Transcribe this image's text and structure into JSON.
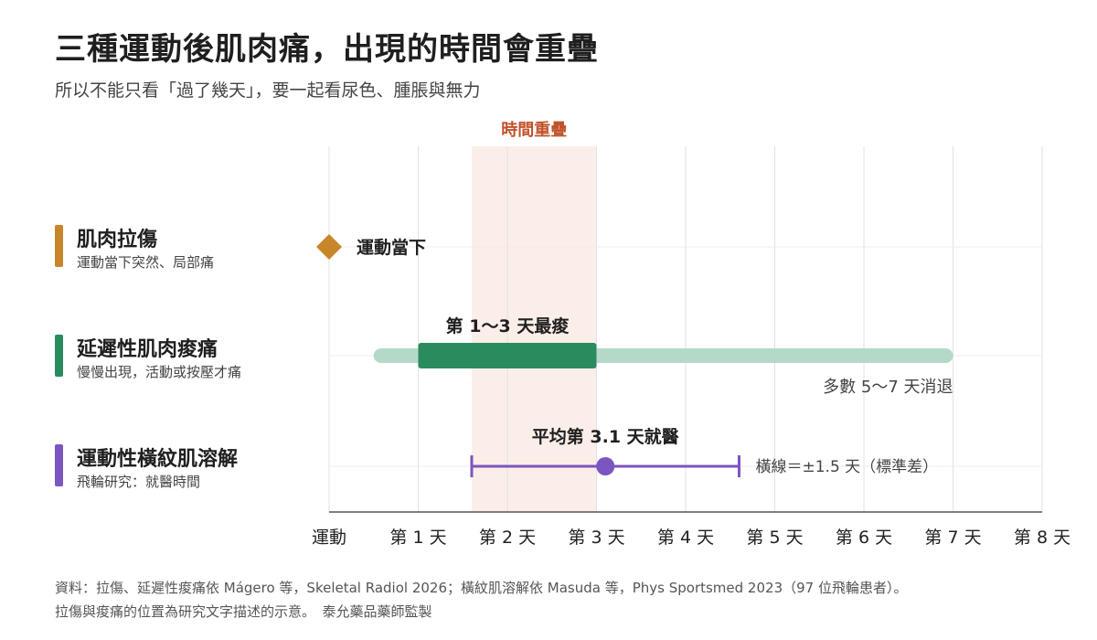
{
  "title": "三種運動後肌肉痛，出現的時間會重疊",
  "subtitle": "所以不能只看「過了幾天」，要一起看尿色、腫脹與無力",
  "rows": [
    {
      "name": "肌肉拉傷",
      "desc": "運動當下突然、局部痛",
      "color": "#c8862a"
    },
    {
      "name": "延遲性肌肉痠痛",
      "desc": "慢慢出現，活動或按壓才痛",
      "color": "#2a8c5e"
    },
    {
      "name": "運動性橫紋肌溶解",
      "desc": "飛輪研究：就醫時間",
      "color": "#7b56c0"
    }
  ],
  "footnotes": [
    "資料：拉傷、延遲性痠痛依 Mágero 等，Skeletal Radiol 2026；橫紋肌溶解依 Masuda 等，Phys Sportsmed 2023（97 位飛輪患者）。",
    "拉傷與痠痛的位置為研究文字描述的示意。　泰允藥品藥師監製"
  ],
  "chart_data": {
    "type": "timeline",
    "x_range": [
      0,
      8
    ],
    "x_ticks": [
      {
        "value": 0,
        "label": "運動"
      },
      {
        "value": 1,
        "label": "第 1 天"
      },
      {
        "value": 2,
        "label": "第 2 天"
      },
      {
        "value": 3,
        "label": "第 3 天"
      },
      {
        "value": 4,
        "label": "第 4 天"
      },
      {
        "value": 5,
        "label": "第 5 天"
      },
      {
        "value": 6,
        "label": "第 6 天"
      },
      {
        "value": 7,
        "label": "第 7 天"
      },
      {
        "value": 8,
        "label": "第 8 天"
      }
    ],
    "overlap_band": {
      "start": 1.6,
      "end": 3.0,
      "label": "時間重疊",
      "color": "#c0532b"
    },
    "strain": {
      "day": 0,
      "label": "運動當下",
      "color": "#c8862a"
    },
    "doms": {
      "range_start": 0.5,
      "range_end": 7.0,
      "peak_start": 1.0,
      "peak_end": 3.0,
      "peak_label": "第 1～3 天最痠",
      "range_label": "多數 5～7 天消退",
      "color": "#2a8c5e",
      "range_color": "#b5d9c8"
    },
    "rhabdo": {
      "mean": 3.1,
      "sd": 1.5,
      "mean_label": "平均第 3.1 天就醫",
      "sd_label": "橫線＝±1.5 天（標準差）",
      "color": "#7b56c0"
    },
    "grid": true
  }
}
